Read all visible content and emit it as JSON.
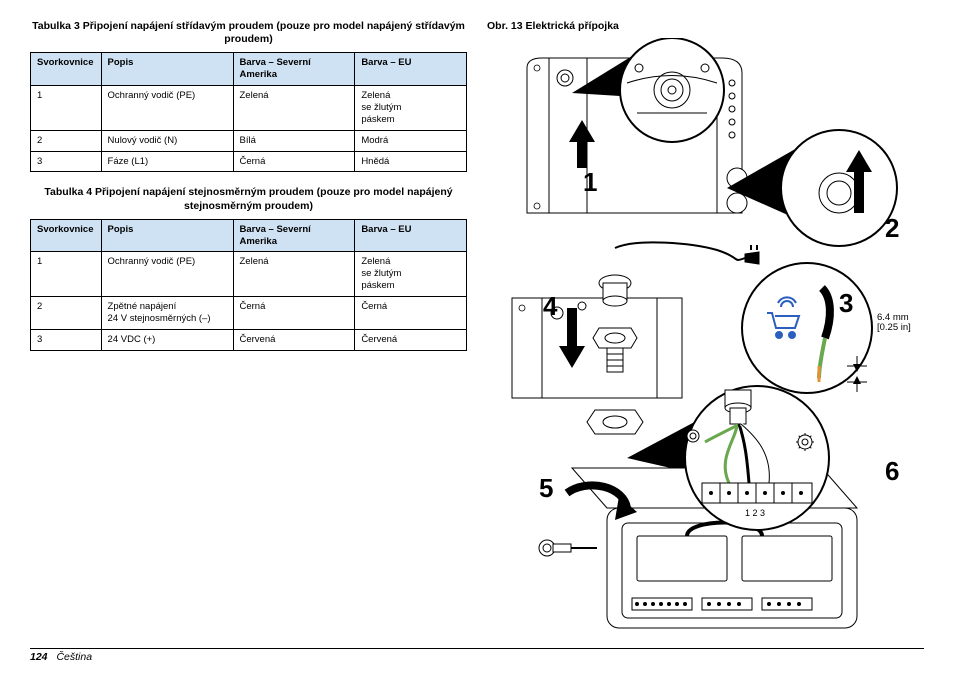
{
  "tables": {
    "t3": {
      "caption": "Tabulka 3  Připojení napájení střídavým proudem (pouze pro model napájený střídavým proudem)",
      "headers": [
        "Svorkovnice",
        "Popis",
        "Barva – Severní Amerika",
        "Barva – EU"
      ],
      "rows": [
        [
          "1",
          "Ochranný vodič (PE)",
          "Zelená",
          "Zelená\nse žlutým\npáskem"
        ],
        [
          "2",
          "Nulový vodič (N)",
          "Bílá",
          "Modrá"
        ],
        [
          "3",
          "Fáze (L1)",
          "Černá",
          "Hnědá"
        ]
      ]
    },
    "t4": {
      "caption": "Tabulka 4  Připojení napájení stejnosměrným proudem (pouze pro model napájený stejnosměrným proudem)",
      "headers": [
        "Svorkovnice",
        "Popis",
        "Barva – Severní Amerika",
        "Barva – EU"
      ],
      "rows": [
        [
          "1",
          "Ochranný vodič (PE)",
          "Zelená",
          "Zelená\nse žlutým\npáskem"
        ],
        [
          "2",
          "Zpětné napájení\n24 V stejnosměrných (–)",
          "Černá",
          "Černá"
        ],
        [
          "3",
          "24 VDC (+)",
          "Červená",
          "Červená"
        ]
      ]
    }
  },
  "figure": {
    "caption": "Obr. 13  Elektrická přípojka",
    "steps": [
      "1",
      "2",
      "3",
      "4",
      "5",
      "6"
    ],
    "dimension": "6.4 mm\n[0.25 in]",
    "terminal_labels": "1 2 3",
    "colors": {
      "cart_icon": "#2b5fbf",
      "wire_green": "#6aa84f",
      "wire_white": "#ffffff",
      "wire_black": "#000000",
      "wire_orange": "#e69138"
    }
  },
  "footer": {
    "page": "124",
    "language": "Čeština"
  }
}
